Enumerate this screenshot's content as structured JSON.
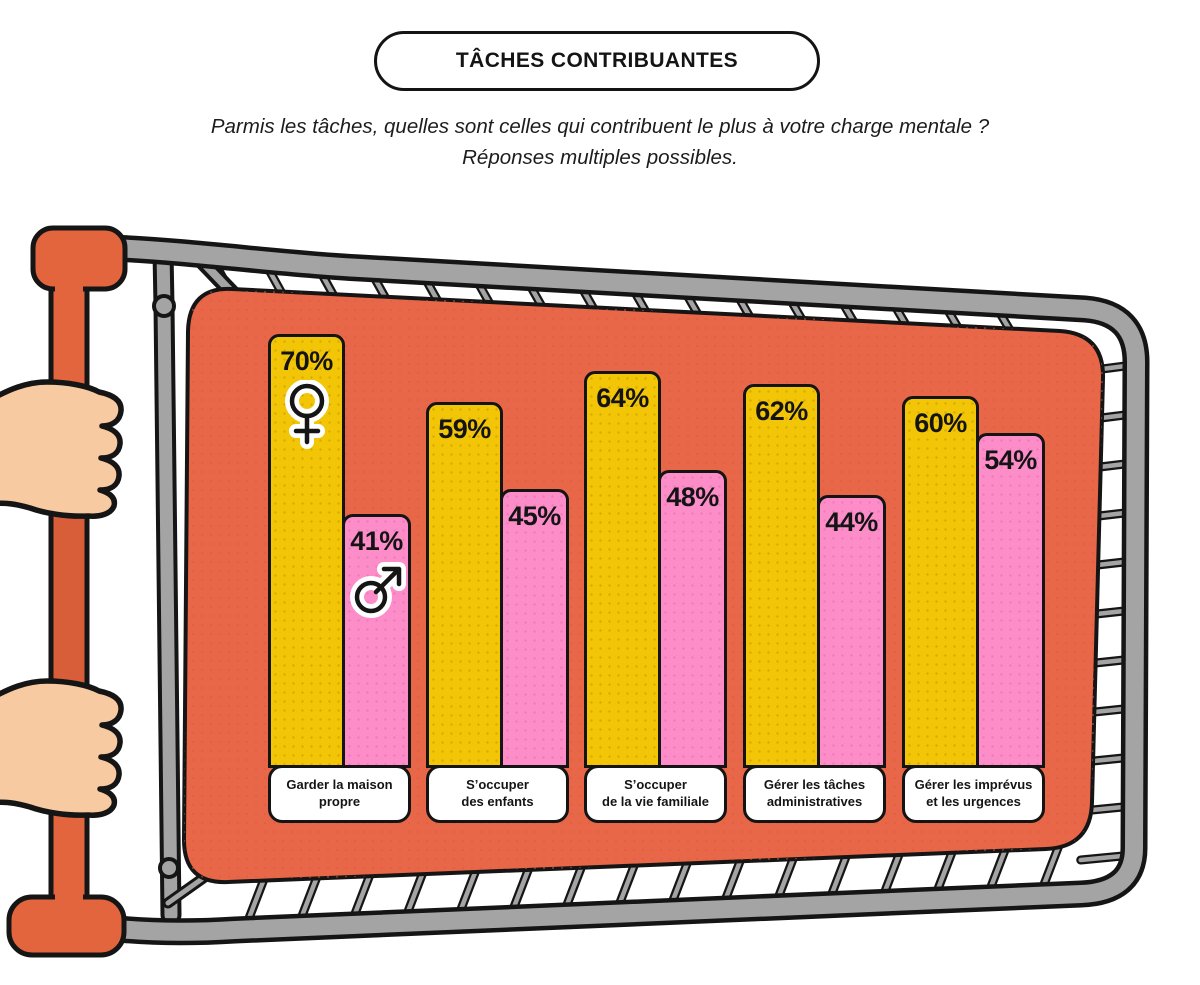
{
  "header": {
    "title": "TÂCHES CONTRIBUANTES",
    "subtitle_line1": "Parmis les tâches, quelles sont celles qui contribuent le plus à votre charge mentale ?",
    "subtitle_line2": "Réponses multiples possibles."
  },
  "chart_data": {
    "type": "bar",
    "title": "TÂCHES CONTRIBUANTES",
    "question": "Parmis les tâches, quelles sont celles qui contribuent le plus à votre charge mentale ? Réponses multiples possibles.",
    "unit": "%",
    "ylim": [
      0,
      100
    ],
    "grid": false,
    "legend_position": "symbols-on-first-bars",
    "categories": [
      "Garder la maison propre",
      "S’occuper des enfants",
      "S’occuper de la vie familiale",
      "Gérer les tâches administratives",
      "Gérer les imprévus et les urgences"
    ],
    "category_label_lines": [
      [
        "Garder la maison",
        "propre"
      ],
      [
        "S’occuper",
        "des enfants"
      ],
      [
        "S’occuper",
        "de la vie familiale"
      ],
      [
        "Gérer les tâches",
        "administratives"
      ],
      [
        "Gérer les imprévus",
        "et les urgences"
      ]
    ],
    "series": [
      {
        "name": "Femmes",
        "symbol": "female",
        "color": "#F2C606",
        "values": [
          70,
          59,
          64,
          62,
          60
        ]
      },
      {
        "name": "Hommes",
        "symbol": "male",
        "color": "#FC8DC9",
        "values": [
          41,
          45,
          48,
          44,
          54
        ]
      }
    ]
  },
  "illustration": {
    "name": "shopping-cart-held-by-two-hands",
    "colors": {
      "basket": "#E86749",
      "basket_dots": "#DC5A3C",
      "frame_gray": "#A4A4A4",
      "handle_orange": "#E2653E",
      "handle_shade": "#D75E39",
      "skin": "#F8CAA2",
      "outline": "#151515"
    }
  }
}
